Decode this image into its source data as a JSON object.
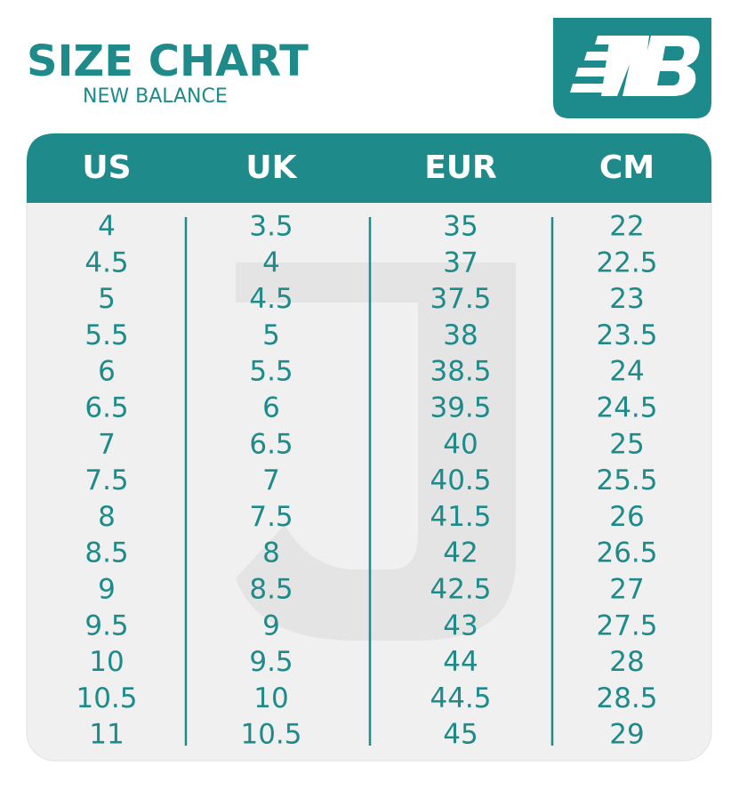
{
  "header": {
    "title": "SIZE CHART",
    "subtitle": "NEW BALANCE"
  },
  "table": {
    "columns": [
      "US",
      "UK",
      "EUR",
      "CM"
    ],
    "rows": [
      [
        "4",
        "3.5",
        "35",
        "22"
      ],
      [
        "4.5",
        "4",
        "37",
        "22.5"
      ],
      [
        "5",
        "4.5",
        "37.5",
        "23"
      ],
      [
        "5.5",
        "5",
        "38",
        "23.5"
      ],
      [
        "6",
        "5.5",
        "38.5",
        "24"
      ],
      [
        "6.5",
        "6",
        "39.5",
        "24.5"
      ],
      [
        "7",
        "6.5",
        "40",
        "25"
      ],
      [
        "7.5",
        "7",
        "40.5",
        "25.5"
      ],
      [
        "8",
        "7.5",
        "41.5",
        "26"
      ],
      [
        "8.5",
        "8",
        "42",
        "26.5"
      ],
      [
        "9",
        "8.5",
        "42.5",
        "27"
      ],
      [
        "9.5",
        "9",
        "43",
        "27.5"
      ],
      [
        "10",
        "9.5",
        "44",
        "28"
      ],
      [
        "10.5",
        "10",
        "44.5",
        "28.5"
      ],
      [
        "11",
        "10.5",
        "45",
        "29"
      ]
    ]
  }
}
